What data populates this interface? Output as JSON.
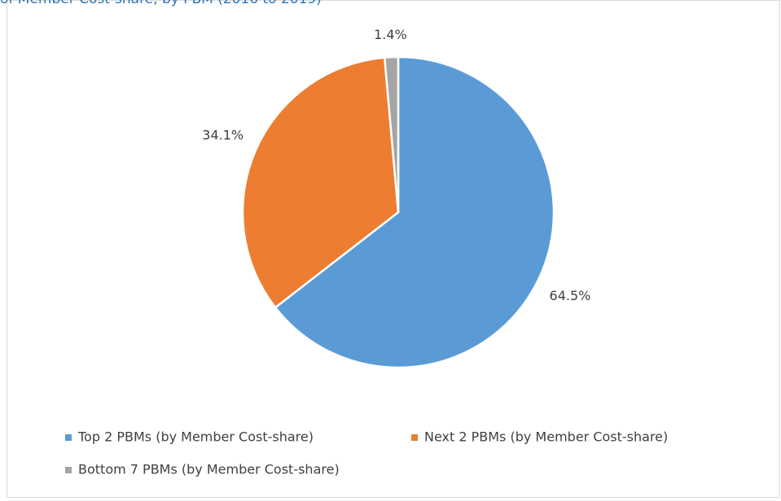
{
  "chart_data": {
    "type": "pie",
    "title": "of Member Cost-share, by PBM (2016 to 2019)",
    "categories": [
      "Top 2 PBMs (by Member Cost-share)",
      "Next 2 PBMs (by Member Cost-share)",
      "Bottom 7 PBMs (by Member Cost-share)"
    ],
    "values": [
      64.5,
      34.1,
      1.4
    ],
    "value_labels": [
      "64.5%",
      "34.1%",
      "1.4%"
    ],
    "colors": [
      "#5b9bd5",
      "#ed7d31",
      "#a5a5a5"
    ],
    "legend": "bottom"
  }
}
